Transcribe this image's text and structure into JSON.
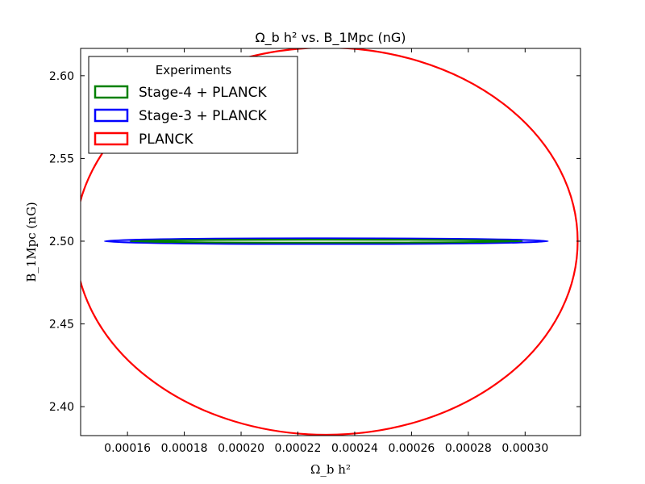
{
  "chart_data": {
    "type": "line",
    "title": "Ω_b h²  vs. B_1Mpc (nG)",
    "xlabel": "Ω_b h²",
    "ylabel": "B_1Mpc (nG)",
    "xlim": [
      0.0001435,
      0.0003195
    ],
    "ylim": [
      2.3825,
      2.6165
    ],
    "xticks": [
      0.00016,
      0.00018,
      0.0002,
      0.00022,
      0.00024,
      0.00026,
      0.00028,
      0.0003
    ],
    "xtick_labels": [
      "0.00016",
      "0.00018",
      "0.00020",
      "0.00022",
      "0.00024",
      "0.00026",
      "0.00028",
      "0.00030"
    ],
    "yticks": [
      2.4,
      2.45,
      2.5,
      2.55,
      2.6
    ],
    "ytick_labels": [
      "2.40",
      "2.45",
      "2.50",
      "2.55",
      "2.60"
    ],
    "grid": false,
    "legend": {
      "title": "Experiments",
      "position": "top-left"
    },
    "series": [
      {
        "name": "Stage-4 + PLANCK",
        "color": "#008000",
        "shape": "ellipse",
        "center": [
          0.00023,
          2.5
        ],
        "x_semi_axis": 6.9e-05,
        "y_semi_axis": 0.0009
      },
      {
        "name": "Stage-3 + PLANCK",
        "color": "#0000ff",
        "shape": "ellipse",
        "center": [
          0.00023,
          2.5
        ],
        "x_semi_axis": 7.8e-05,
        "y_semi_axis": 0.0017
      },
      {
        "name": "PLANCK",
        "color": "#ff0000",
        "shape": "ellipse",
        "center": [
          0.00023,
          2.5
        ],
        "x_semi_axis": 8.85e-05,
        "y_semi_axis": 0.117
      }
    ]
  }
}
